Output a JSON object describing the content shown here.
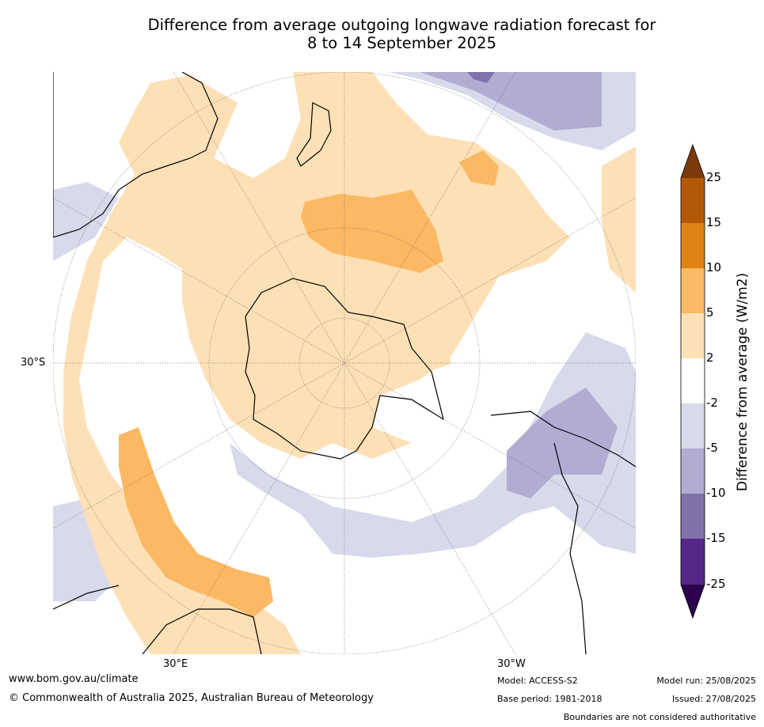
{
  "title": {
    "line1": "Difference from average outgoing longwave radiation forecast for",
    "line2": "8 to 14 September 2025"
  },
  "map": {
    "projection": "south polar stereographic",
    "lat_label": "30°S",
    "lon_labels": [
      "30°E",
      "30°W"
    ],
    "graticule": "dotted grey",
    "coastlines": "black"
  },
  "colorbar": {
    "title": "Difference from average (W/m2)",
    "ticks": [
      "25",
      "15",
      "10",
      "5",
      "2",
      "-2",
      "-5",
      "-10",
      "-15",
      "-25"
    ],
    "colors": {
      "above_max": "#7a3a0c",
      "15_to_25": "#b35806",
      "10_to_15": "#e08214",
      "5_to_10": "#fdb863",
      "2_to_5": "#fee0b6",
      "neutral": "#ffffff",
      "m5_to_m2": "#d8daeb",
      "m10_to_m5": "#b2abd2",
      "m15_to_m10": "#8073ac",
      "m25_to_m15": "#542788",
      "below_min": "#2d004b"
    }
  },
  "footer": {
    "website": "www.bom.gov.au/climate",
    "copyright": "© Commonwealth of Australia 2025, Australian Bureau of Meteorology",
    "model": "Model: ACCESS-S2",
    "base_period": "Base period: 1981-2018",
    "model_run": "Model run: 25/08/2025",
    "issued": "Issued: 27/08/2025",
    "disclaimer": "Boundaries are not considered authoritative"
  }
}
